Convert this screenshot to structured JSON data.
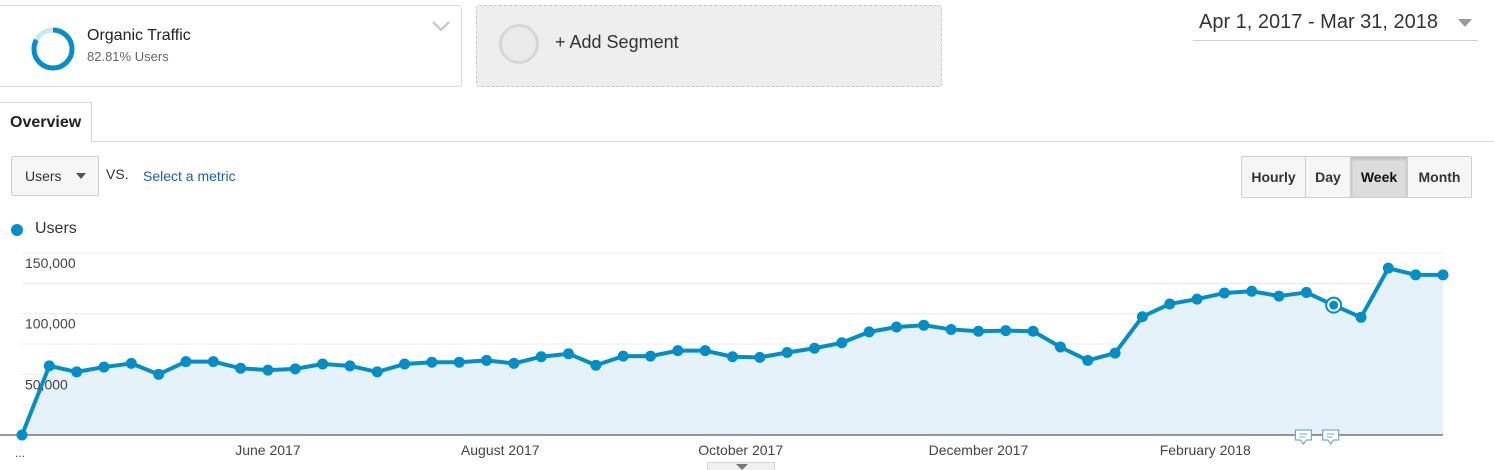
{
  "segment": {
    "name": "Organic Traffic",
    "subtitle": "82.81% Users",
    "ring_fraction": 0.8281
  },
  "add_segment": {
    "label": "+ Add Segment"
  },
  "date_range": {
    "label": "Apr 1, 2017 - Mar 31, 2018"
  },
  "tabs": [
    {
      "label": "Overview",
      "active": true
    }
  ],
  "metric": {
    "selected": "Users",
    "vs_label": "VS.",
    "select_metric_label": "Select a metric"
  },
  "granularity": {
    "buttons": [
      {
        "label": "Hourly",
        "active": false
      },
      {
        "label": "Day",
        "active": false
      },
      {
        "label": "Week",
        "active": true
      },
      {
        "label": "Month",
        "active": false
      }
    ]
  },
  "legend": {
    "label": "Users"
  },
  "colors": {
    "series": "#058dc7",
    "area": "#e6f2f9",
    "accent_link": "#1a5fa6"
  },
  "chart_data": {
    "type": "area",
    "series": [
      {
        "name": "Users",
        "values": [
          0,
          57000,
          52000,
          56000,
          59000,
          50000,
          60500,
          60500,
          55000,
          53500,
          54500,
          58500,
          57000,
          52000,
          58500,
          60000,
          60000,
          61500,
          59000,
          64500,
          67000,
          57500,
          65000,
          65000,
          69500,
          69500,
          64500,
          64000,
          68000,
          71500,
          76000,
          85000,
          89000,
          90500,
          87000,
          85500,
          86000,
          85500,
          72500,
          61500,
          67500,
          97500,
          108000,
          112000,
          117000,
          118500,
          114500,
          117500,
          107000,
          97000,
          137500,
          132000,
          132000
        ]
      }
    ],
    "x_start_label": "...",
    "x_tick_labels": [
      "June 2017",
      "August 2017",
      "October 2017",
      "December 2017",
      "February 2018"
    ],
    "y_tick_labels": [
      "50,000",
      "100,000",
      "150,000"
    ],
    "y_ticks": [
      50000,
      100000,
      150000
    ],
    "ylim": [
      0,
      150000
    ],
    "highlighted_index": 48,
    "annotation_indices": [
      47,
      48
    ],
    "grid": true
  }
}
